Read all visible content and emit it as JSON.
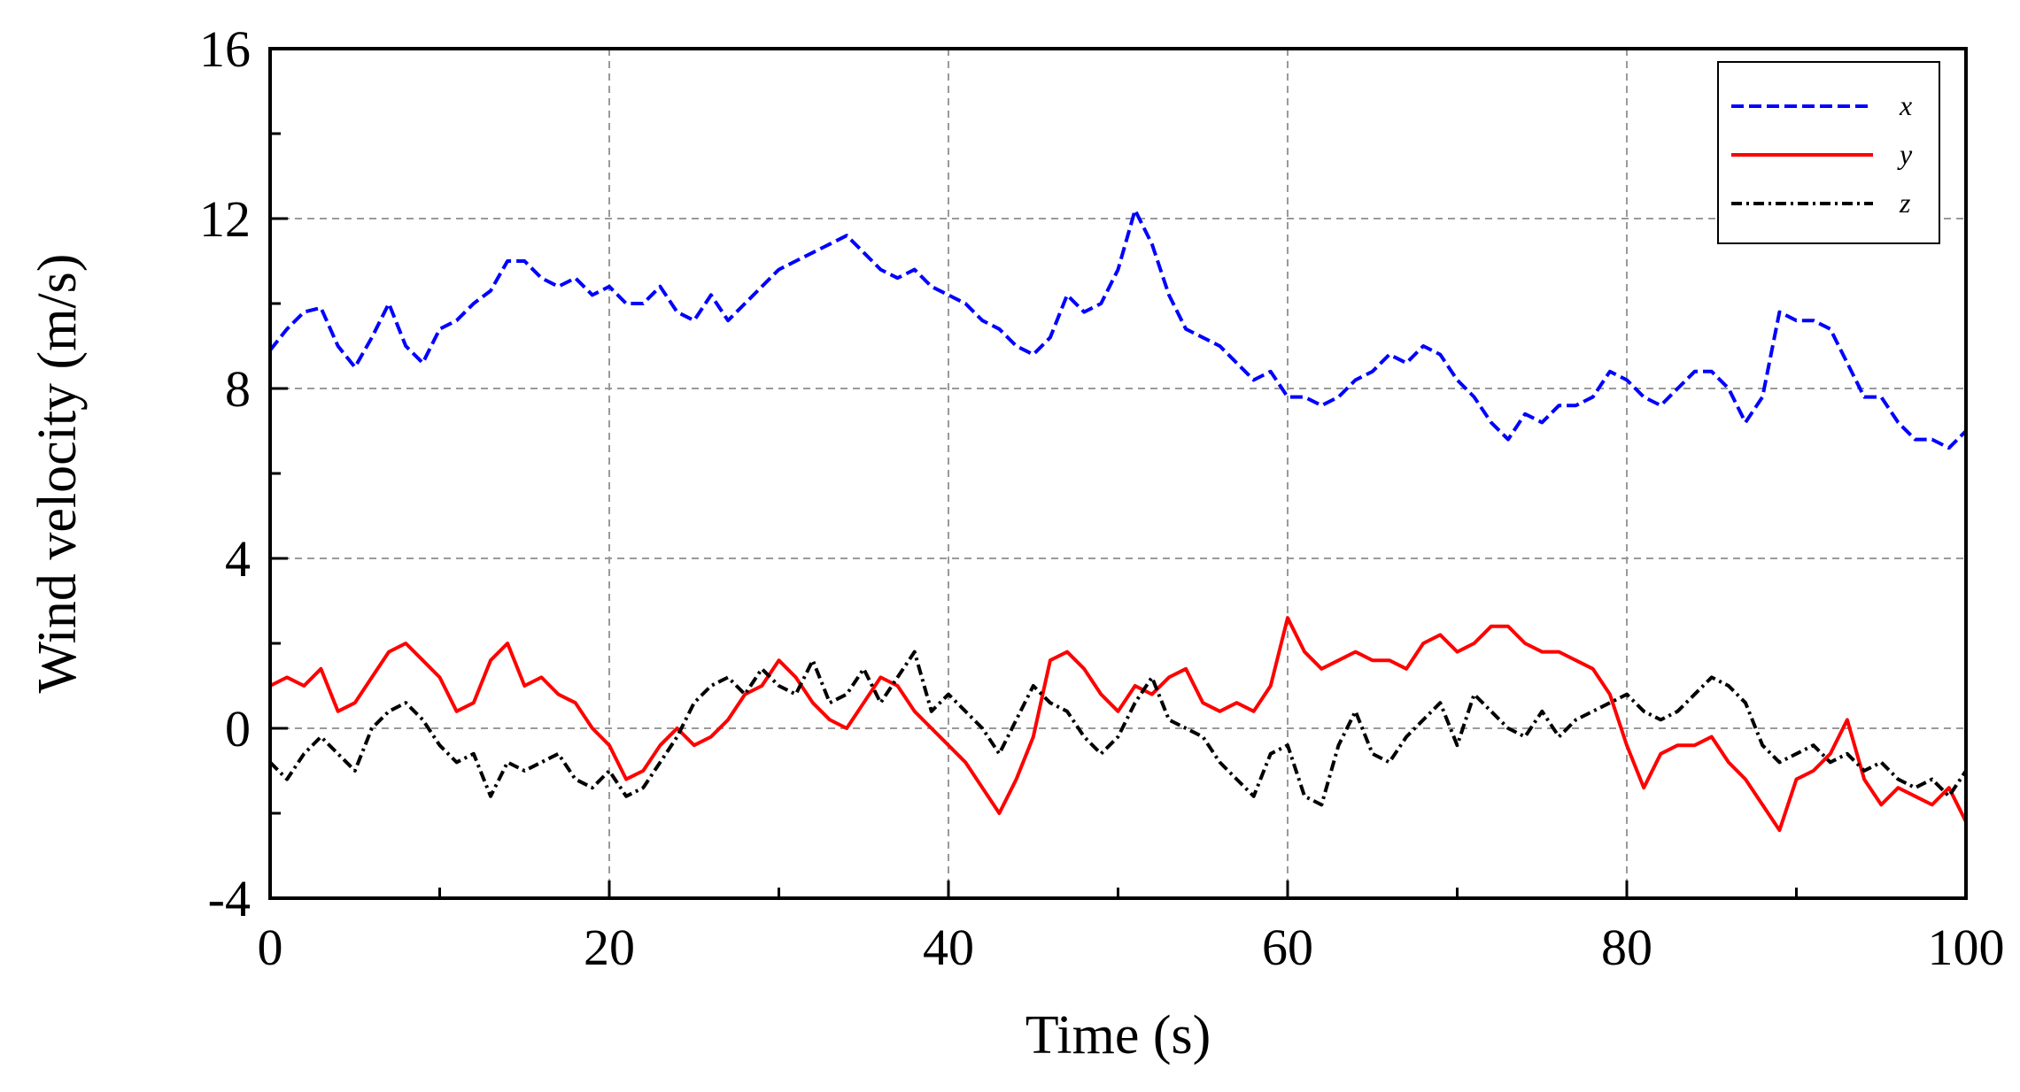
{
  "chart_data": {
    "type": "line",
    "title": "",
    "xlabel": "Time (s)",
    "ylabel": "Wind velocity (m/s)",
    "xlim": [
      0,
      100
    ],
    "ylim": [
      -4,
      16
    ],
    "xticks": [
      0,
      20,
      40,
      60,
      80,
      100
    ],
    "yticks": [
      -4,
      0,
      4,
      8,
      12,
      16
    ],
    "xtick_labels": [
      "0",
      "20",
      "40",
      "60",
      "80",
      "100"
    ],
    "ytick_labels": [
      "-4",
      "0",
      "4",
      "8",
      "12",
      "16"
    ],
    "grid": true,
    "legend_position": "top-right",
    "series": [
      {
        "name": "x",
        "color": "#0000ff",
        "line_style": "dashed",
        "x": [
          0,
          1,
          2,
          3,
          4,
          5,
          6,
          7,
          8,
          9,
          10,
          11,
          12,
          13,
          14,
          15,
          16,
          17,
          18,
          19,
          20,
          21,
          22,
          23,
          24,
          25,
          26,
          27,
          28,
          29,
          30,
          31,
          32,
          33,
          34,
          35,
          36,
          37,
          38,
          39,
          40,
          41,
          42,
          43,
          44,
          45,
          46,
          47,
          48,
          49,
          50,
          51,
          52,
          53,
          54,
          55,
          56,
          57,
          58,
          59,
          60,
          61,
          62,
          63,
          64,
          65,
          66,
          67,
          68,
          69,
          70,
          71,
          72,
          73,
          74,
          75,
          76,
          77,
          78,
          79,
          80,
          81,
          82,
          83,
          84,
          85,
          86,
          87,
          88,
          89,
          90,
          91,
          92,
          93,
          94,
          95,
          96,
          97,
          98,
          99,
          100
        ],
        "y": [
          8.9,
          9.4,
          9.8,
          9.9,
          9.0,
          8.5,
          9.2,
          10.0,
          9.0,
          8.6,
          9.4,
          9.6,
          10.0,
          10.3,
          11.0,
          11.0,
          10.6,
          10.4,
          10.6,
          10.2,
          10.4,
          10.0,
          10.0,
          10.4,
          9.8,
          9.6,
          10.2,
          9.6,
          10.0,
          10.4,
          10.8,
          11.0,
          11.2,
          11.4,
          11.6,
          11.2,
          10.8,
          10.6,
          10.8,
          10.4,
          10.2,
          10.0,
          9.6,
          9.4,
          9.0,
          8.8,
          9.2,
          10.2,
          9.8,
          10.0,
          10.8,
          12.2,
          11.4,
          10.2,
          9.4,
          9.2,
          9.0,
          8.6,
          8.2,
          8.4,
          7.8,
          7.8,
          7.6,
          7.8,
          8.2,
          8.4,
          8.8,
          8.6,
          9.0,
          8.8,
          8.2,
          7.8,
          7.2,
          6.8,
          7.4,
          7.2,
          7.6,
          7.6,
          7.8,
          8.4,
          8.2,
          7.8,
          7.6,
          8.0,
          8.4,
          8.4,
          8.0,
          7.2,
          7.8,
          9.8,
          9.6,
          9.6,
          9.4,
          8.6,
          7.8,
          7.8,
          7.2,
          6.8,
          6.8,
          6.6,
          7.0
        ]
      },
      {
        "name": "y",
        "color": "#ff0000",
        "line_style": "solid",
        "x": [
          0,
          1,
          2,
          3,
          4,
          5,
          6,
          7,
          8,
          9,
          10,
          11,
          12,
          13,
          14,
          15,
          16,
          17,
          18,
          19,
          20,
          21,
          22,
          23,
          24,
          25,
          26,
          27,
          28,
          29,
          30,
          31,
          32,
          33,
          34,
          35,
          36,
          37,
          38,
          39,
          40,
          41,
          42,
          43,
          44,
          45,
          46,
          47,
          48,
          49,
          50,
          51,
          52,
          53,
          54,
          55,
          56,
          57,
          58,
          59,
          60,
          61,
          62,
          63,
          64,
          65,
          66,
          67,
          68,
          69,
          70,
          71,
          72,
          73,
          74,
          75,
          76,
          77,
          78,
          79,
          80,
          81,
          82,
          83,
          84,
          85,
          86,
          87,
          88,
          89,
          90,
          91,
          92,
          93,
          94,
          95,
          96,
          97,
          98,
          99,
          100
        ],
        "y": [
          1.0,
          1.2,
          1.0,
          1.4,
          0.4,
          0.6,
          1.2,
          1.8,
          2.0,
          1.6,
          1.2,
          0.4,
          0.6,
          1.6,
          2.0,
          1.0,
          1.2,
          0.8,
          0.6,
          0.0,
          -0.4,
          -1.2,
          -1.0,
          -0.4,
          0.0,
          -0.4,
          -0.2,
          0.2,
          0.8,
          1.0,
          1.6,
          1.2,
          0.6,
          0.2,
          0.0,
          0.6,
          1.2,
          1.0,
          0.4,
          0.0,
          -0.4,
          -0.8,
          -1.4,
          -2.0,
          -1.2,
          -0.2,
          1.6,
          1.8,
          1.4,
          0.8,
          0.4,
          1.0,
          0.8,
          1.2,
          1.4,
          0.6,
          0.4,
          0.6,
          0.4,
          1.0,
          2.6,
          1.8,
          1.4,
          1.6,
          1.8,
          1.6,
          1.6,
          1.4,
          2.0,
          2.2,
          1.8,
          2.0,
          2.4,
          2.4,
          2.0,
          1.8,
          1.8,
          1.6,
          1.4,
          0.8,
          -0.4,
          -1.4,
          -0.6,
          -0.4,
          -0.4,
          -0.2,
          -0.8,
          -1.2,
          -1.8,
          -2.4,
          -1.2,
          -1.0,
          -0.6,
          0.2,
          -1.2,
          -1.8,
          -1.4,
          -1.6,
          -1.8,
          -1.4,
          -2.2
        ]
      },
      {
        "name": "z",
        "color": "#000000",
        "line_style": "dash-dot",
        "x": [
          0,
          1,
          2,
          3,
          4,
          5,
          6,
          7,
          8,
          9,
          10,
          11,
          12,
          13,
          14,
          15,
          16,
          17,
          18,
          19,
          20,
          21,
          22,
          23,
          24,
          25,
          26,
          27,
          28,
          29,
          30,
          31,
          32,
          33,
          34,
          35,
          36,
          37,
          38,
          39,
          40,
          41,
          42,
          43,
          44,
          45,
          46,
          47,
          48,
          49,
          50,
          51,
          52,
          53,
          54,
          55,
          56,
          57,
          58,
          59,
          60,
          61,
          62,
          63,
          64,
          65,
          66,
          67,
          68,
          69,
          70,
          71,
          72,
          73,
          74,
          75,
          76,
          77,
          78,
          79,
          80,
          81,
          82,
          83,
          84,
          85,
          86,
          87,
          88,
          89,
          90,
          91,
          92,
          93,
          94,
          95,
          96,
          97,
          98,
          99,
          100
        ],
        "y": [
          -0.8,
          -1.2,
          -0.6,
          -0.2,
          -0.6,
          -1.0,
          0.0,
          0.4,
          0.6,
          0.2,
          -0.4,
          -0.8,
          -0.6,
          -1.6,
          -0.8,
          -1.0,
          -0.8,
          -0.6,
          -1.2,
          -1.4,
          -1.0,
          -1.6,
          -1.4,
          -0.8,
          -0.2,
          0.6,
          1.0,
          1.2,
          0.8,
          1.4,
          1.0,
          0.8,
          1.6,
          0.6,
          0.8,
          1.4,
          0.6,
          1.2,
          1.8,
          0.4,
          0.8,
          0.4,
          0.0,
          -0.6,
          0.2,
          1.0,
          0.6,
          0.4,
          -0.2,
          -0.6,
          -0.2,
          0.6,
          1.2,
          0.2,
          0.0,
          -0.2,
          -0.8,
          -1.2,
          -1.6,
          -0.6,
          -0.4,
          -1.6,
          -1.8,
          -0.4,
          0.4,
          -0.6,
          -0.8,
          -0.2,
          0.2,
          0.6,
          -0.4,
          0.8,
          0.4,
          0.0,
          -0.2,
          0.4,
          -0.2,
          0.2,
          0.4,
          0.6,
          0.8,
          0.4,
          0.2,
          0.4,
          0.8,
          1.2,
          1.0,
          0.6,
          -0.4,
          -0.8,
          -0.6,
          -0.4,
          -0.8,
          -0.6,
          -1.0,
          -0.8,
          -1.2,
          -1.4,
          -1.2,
          -1.6,
          -1.0
        ]
      }
    ]
  }
}
